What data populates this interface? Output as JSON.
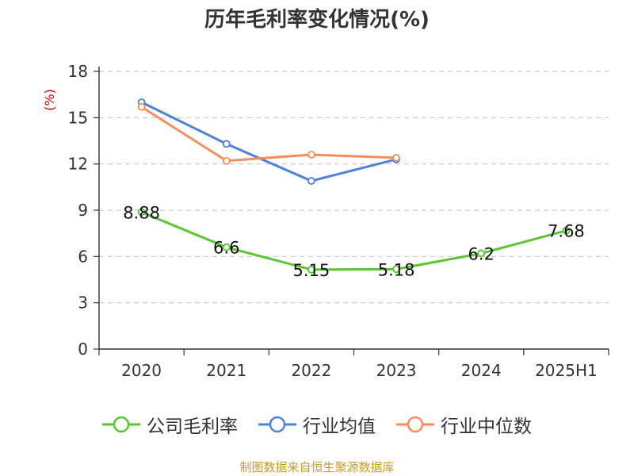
{
  "title": "历年毛利率变化情况(%)",
  "source": "制图数据来自恒生聚源数据库",
  "colors": {
    "company": "#5ac530",
    "industry_avg": "#4f81d8",
    "industry_median": "#f58d5c"
  },
  "chart_data": {
    "type": "line",
    "title": "历年毛利率变化情况(%)",
    "ylabel": "(%)",
    "ylim": [
      0,
      18
    ],
    "yticks": [
      0,
      3,
      6,
      9,
      12,
      15,
      18
    ],
    "grid": true,
    "legend_position": "bottom",
    "categories": [
      "2020",
      "2021",
      "2022",
      "2023",
      "2024",
      "2025H1"
    ],
    "series": [
      {
        "name": "公司毛利率",
        "color": "#5ac530",
        "values": [
          8.88,
          6.6,
          5.15,
          5.18,
          6.2,
          7.68
        ],
        "labels": [
          "8.88",
          "6.6",
          "5.15",
          "5.18",
          "6.2",
          "7.68"
        ]
      },
      {
        "name": "行业均值",
        "color": "#4f81d8",
        "values": [
          16.0,
          13.3,
          10.9,
          12.3,
          null,
          null
        ]
      },
      {
        "name": "行业中位数",
        "color": "#f58d5c",
        "values": [
          15.7,
          12.2,
          12.6,
          12.4,
          null,
          null
        ]
      }
    ]
  }
}
